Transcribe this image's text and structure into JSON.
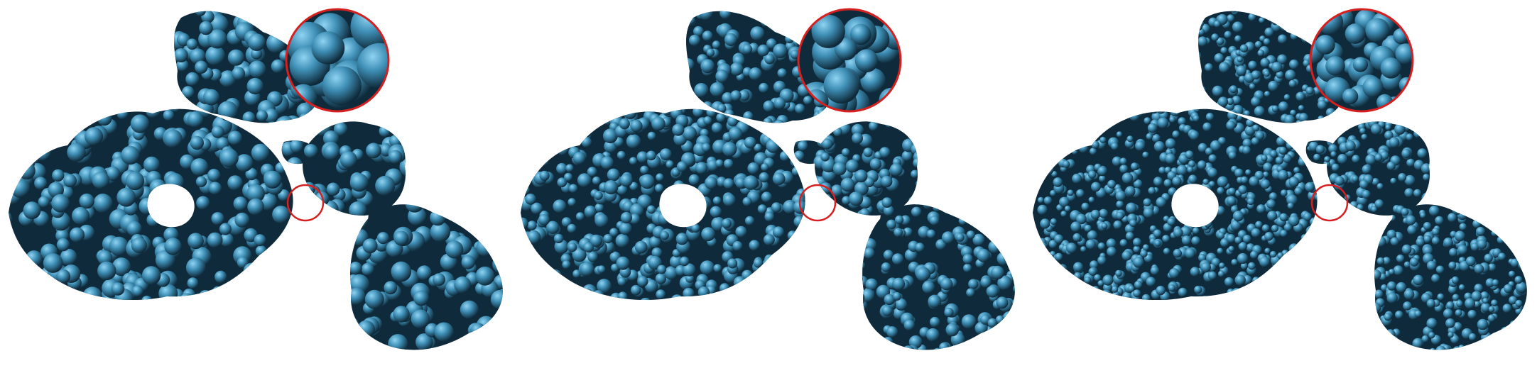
{
  "figure": {
    "panel_count": 3,
    "surface_color": "#3f8fb6",
    "surface_dark": "#0f2b3b",
    "surface_highlight": "#8fd3f2",
    "marker_color": "#d62020",
    "background": "#ffffff"
  },
  "panels": [
    {
      "name": "panel-1",
      "bump_scale": "coarse"
    },
    {
      "name": "panel-2",
      "bump_scale": "medium"
    },
    {
      "name": "panel-3",
      "bump_scale": "fine"
    }
  ]
}
